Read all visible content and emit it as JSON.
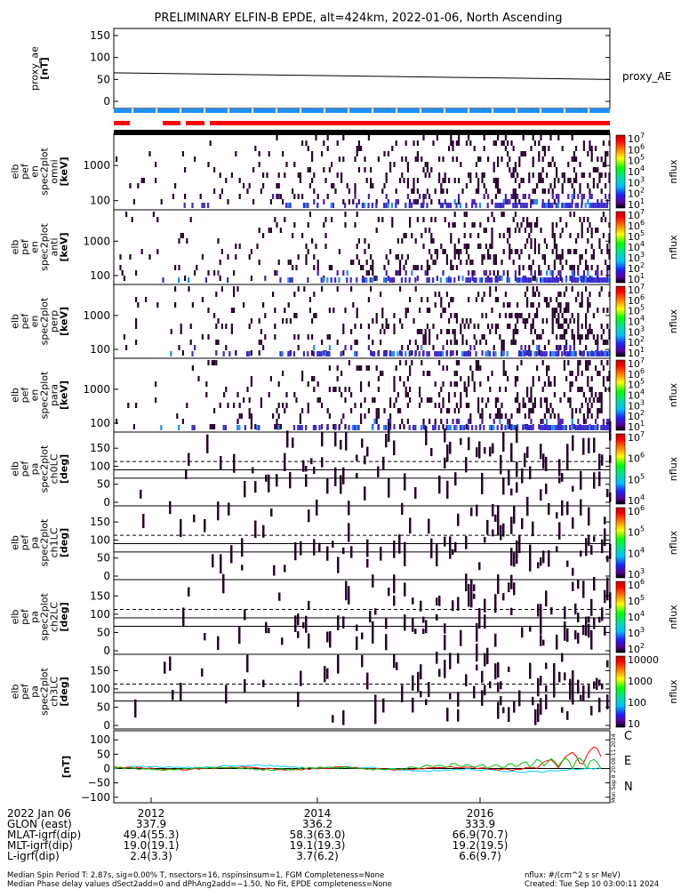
{
  "chart_data": {
    "type": "spectrogram-stack",
    "title": "PRELIMINARY ELFIN-B EPDE, alt=424km, 2022-01-06, North Ascending",
    "panels": [
      {
        "id": "proxy_ae",
        "kind": "line",
        "ylabel": [
          "proxy_ae",
          "[nT]"
        ],
        "ylim": [
          -10,
          155
        ],
        "yticks": [
          "150",
          "100",
          "50",
          "0"
        ],
        "yvals": [
          150,
          100,
          50,
          0
        ],
        "legend": "proxy_AE",
        "line": {
          "start": 65,
          "end": 50
        }
      },
      {
        "id": "en_omni",
        "kind": "spec",
        "ylabel": [
          "elb",
          "pef",
          "en",
          "spec2plot",
          "omni",
          "[keV]"
        ],
        "yticks": [
          "1000",
          "100"
        ],
        "cbar": {
          "labels": [
            "10",
            "10",
            "10",
            "10",
            "10",
            "10",
            "10"
          ],
          "exps": [
            "7",
            "6",
            "5",
            "4",
            "3",
            "2",
            "1"
          ],
          "unit": "nflux"
        }
      },
      {
        "id": "en_anti",
        "kind": "spec",
        "ylabel": [
          "elb",
          "pef",
          "en",
          "spec2plot",
          "anti",
          "[keV]"
        ],
        "yticks": [
          "1000",
          "100"
        ],
        "cbar": {
          "labels": [
            "10",
            "10",
            "10",
            "10",
            "10",
            "10",
            "10"
          ],
          "exps": [
            "7",
            "6",
            "5",
            "4",
            "3",
            "2",
            "1"
          ],
          "unit": "nflux"
        }
      },
      {
        "id": "en_perp",
        "kind": "spec",
        "ylabel": [
          "elb",
          "pef",
          "en",
          "spec2plot",
          "perp",
          "[keV]"
        ],
        "yticks": [
          "1000",
          "100"
        ],
        "cbar": {
          "labels": [
            "10",
            "10",
            "10",
            "10",
            "10",
            "10",
            "10"
          ],
          "exps": [
            "7",
            "6",
            "5",
            "4",
            "3",
            "2",
            "1"
          ],
          "unit": "nflux"
        }
      },
      {
        "id": "en_para",
        "kind": "spec",
        "ylabel": [
          "elb",
          "pef",
          "en",
          "spec2plot",
          "para",
          "[keV]"
        ],
        "yticks": [
          "1000",
          "100"
        ],
        "cbar": {
          "labels": [
            "10",
            "10",
            "10",
            "10",
            "10",
            "10",
            "10"
          ],
          "exps": [
            "7",
            "6",
            "5",
            "4",
            "3",
            "2",
            "1"
          ],
          "unit": "nflux"
        }
      },
      {
        "id": "pa_ch0",
        "kind": "pa",
        "ylabel": [
          "elb",
          "pef",
          "pa",
          "spec2plot",
          "ch0LC",
          "[deg]"
        ],
        "yticks": [
          "150",
          "100",
          "50",
          "0"
        ],
        "cbar": {
          "labels": [
            "10",
            "10",
            "10",
            "10"
          ],
          "exps": [
            "7",
            "6",
            "5",
            "4"
          ],
          "unit": "nflux"
        }
      },
      {
        "id": "pa_ch1",
        "kind": "pa",
        "ylabel": [
          "elb",
          "pef",
          "pa",
          "spec2plot",
          "ch1LC",
          "[deg]"
        ],
        "yticks": [
          "150",
          "100",
          "50",
          "0"
        ],
        "cbar": {
          "labels": [
            "10",
            "10",
            "10",
            "10"
          ],
          "exps": [
            "6",
            "5",
            "4",
            "3"
          ],
          "unit": "nflux"
        }
      },
      {
        "id": "pa_ch2",
        "kind": "pa",
        "ylabel": [
          "elb",
          "pef",
          "pa",
          "spec2plot",
          "ch2LC",
          "[deg]"
        ],
        "yticks": [
          "150",
          "100",
          "50",
          "0"
        ],
        "cbar": {
          "labels": [
            "10",
            "10",
            "10",
            "10",
            "10"
          ],
          "exps": [
            "6",
            "5",
            "4",
            "3",
            "2"
          ],
          "unit": "nflux"
        }
      },
      {
        "id": "pa_ch3",
        "kind": "pa",
        "ylabel": [
          "elb",
          "pef",
          "pa",
          "spec2plot",
          "ch3LC",
          "[deg]"
        ],
        "yticks": [
          "150",
          "100",
          "50",
          "0"
        ],
        "cbar": {
          "labels": [
            "10000",
            "1000",
            "100",
            "10"
          ],
          "exps": [
            "",
            "",
            "",
            ""
          ],
          "unit": "nflux"
        }
      },
      {
        "id": "mag",
        "kind": "mag",
        "ylabel": [
          "[nT]"
        ],
        "yticks": [
          "100",
          "50",
          "0",
          "−50",
          "−100"
        ],
        "legend": [
          "C",
          "E",
          "N"
        ],
        "legend_colors": [
          "#00d0ff",
          "#ff0000",
          "#00c000"
        ],
        "side_text": "Mon Sep 8 20:08:11 2024"
      }
    ],
    "footer": {
      "date": "2022 Jan 06",
      "rows": [
        {
          "label": "GLON (east)",
          "values": [
            "337.9",
            "336.2",
            "333.9"
          ]
        },
        {
          "label": "MLAT-igrf(dip)",
          "values": [
            "49.4(55.3)",
            "58.3(63.0)",
            "66.9(70.7)"
          ]
        },
        {
          "label": "MLT-igrf(dip)",
          "values": [
            "19.0(19.1)",
            "19.1(19.3)",
            "19.2(19.5)"
          ]
        },
        {
          "label": "L-igrf(dip)",
          "values": [
            "2.4(3.3)",
            "3.7(6.2)",
            "6.6(9.7)"
          ]
        }
      ],
      "times": [
        "2012",
        "2014",
        "2016"
      ],
      "note1": "Median Spin Period T: 2.87s, sig=0.00% T, nsectors=16, nspinsinsum=1, FGM Completeness=None",
      "note2": "Median Phase delay values dSect2add=0 and dPhAng2add=−1.50, No Fit, EPDE completeness=None",
      "unit_note": "nflux: #/(cm^2 s sr MeV)",
      "created": "Created: Tue Sep 10 03:00:11 2024"
    }
  }
}
